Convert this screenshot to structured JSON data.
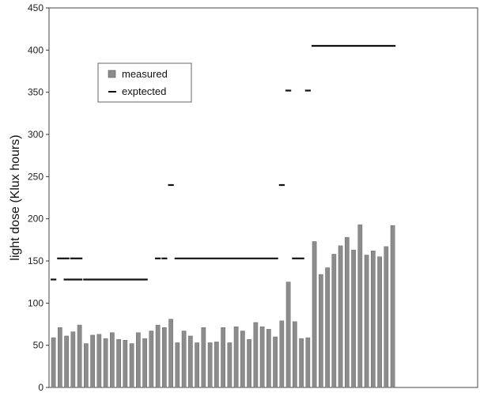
{
  "chart_data": {
    "type": "bar",
    "title": "",
    "xlabel": "",
    "ylabel": "light dose (Klux hours)",
    "ylim": [
      0,
      450
    ],
    "yticks": [
      0,
      50,
      100,
      150,
      200,
      250,
      300,
      350,
      400,
      450
    ],
    "grid": false,
    "legend_position": "top-left",
    "colors": {
      "measured": "#8c8c8c",
      "expected": "#111111",
      "axis": "#333333"
    },
    "series": [
      {
        "name": "measured",
        "kind": "bar",
        "values": [
          59,
          71,
          61,
          66,
          74,
          52,
          62,
          63,
          58,
          65,
          57,
          56,
          52,
          65,
          58,
          67,
          74,
          71,
          81,
          53,
          67,
          61,
          53,
          71,
          53,
          54,
          71,
          53,
          72,
          67,
          57,
          77,
          72,
          69,
          60,
          79,
          125,
          78,
          58,
          59,
          173,
          134,
          142,
          158,
          168,
          178,
          163,
          193,
          157,
          162,
          155,
          167,
          192
        ]
      },
      {
        "name": "exptected",
        "kind": "dash",
        "segments": [
          {
            "from": 0,
            "to": 1,
            "y": 128
          },
          {
            "from": 1,
            "to": 3,
            "y": 153
          },
          {
            "from": 2,
            "to": 5,
            "y": 128
          },
          {
            "from": 3,
            "to": 5,
            "y": 153
          },
          {
            "from": 5,
            "to": 15,
            "y": 128
          },
          {
            "from": 16,
            "to": 17,
            "y": 153
          },
          {
            "from": 17,
            "to": 18,
            "y": 153
          },
          {
            "from": 18,
            "to": 19,
            "y": 240
          },
          {
            "from": 19,
            "to": 35,
            "y": 153
          },
          {
            "from": 35,
            "to": 36,
            "y": 240
          },
          {
            "from": 36,
            "to": 37,
            "y": 352
          },
          {
            "from": 37,
            "to": 39,
            "y": 153
          },
          {
            "from": 39,
            "to": 40,
            "y": 352
          },
          {
            "from": 40,
            "to": 53,
            "y": 405
          }
        ]
      }
    ]
  }
}
